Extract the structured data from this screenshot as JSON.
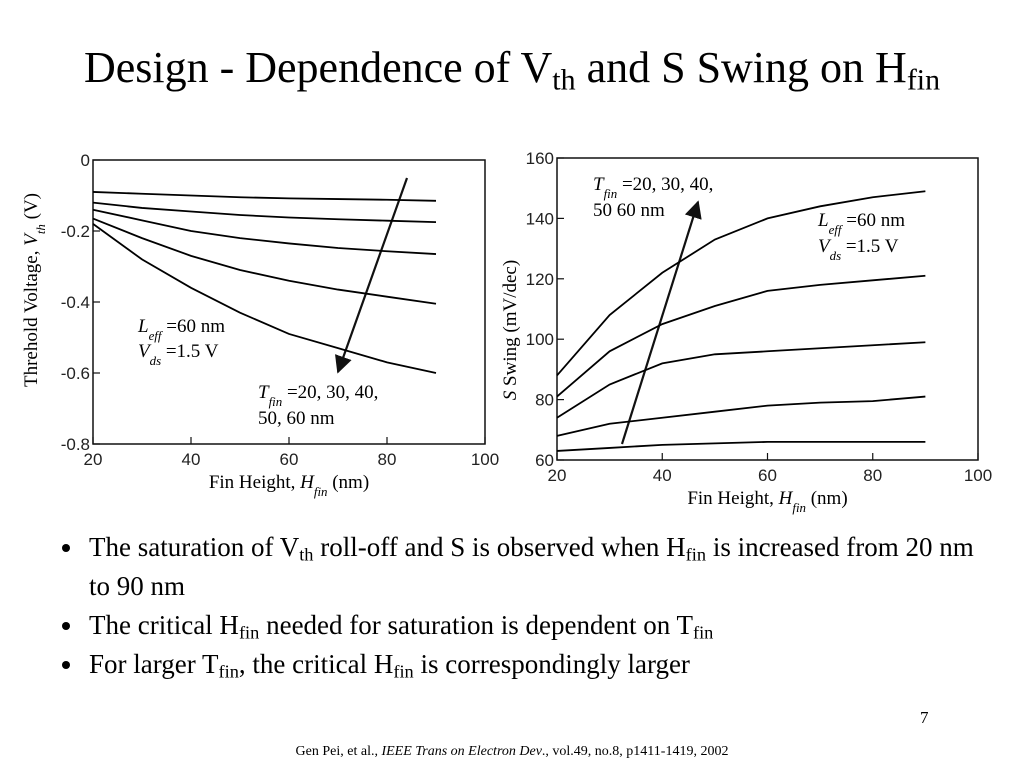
{
  "title": [
    {
      "text": "Design - Dependence of V"
    },
    {
      "text": "th",
      "sub": true
    },
    {
      "text": " and S Swing on H"
    },
    {
      "text": "fin",
      "sub": true
    }
  ],
  "chart_data": [
    {
      "type": "line",
      "x": [
        20,
        30,
        40,
        50,
        60,
        70,
        80,
        90
      ],
      "xlim": [
        20,
        100
      ],
      "xticks": [
        20,
        40,
        60,
        80,
        100
      ],
      "ylim": [
        -0.8,
        0
      ],
      "yticks": [
        0,
        -0.2,
        -0.4,
        -0.6,
        -0.8
      ],
      "color": "#000000",
      "xlabel": [
        {
          "text": "Fin Height, "
        },
        {
          "text": "H",
          "italic": true
        },
        {
          "text": "fin",
          "sub": true,
          "italic": true
        },
        {
          "text": " (nm)"
        }
      ],
      "ylabel": [
        {
          "text": "Threhold Voltage, "
        },
        {
          "text": "V",
          "italic": true
        },
        {
          "text": "th",
          "sub": true,
          "italic": true
        },
        {
          "text": " (V)"
        }
      ],
      "series": [
        {
          "values": [
            -0.09,
            -0.095,
            -0.1,
            -0.105,
            -0.108,
            -0.11,
            -0.112,
            -0.115
          ]
        },
        {
          "values": [
            -0.12,
            -0.135,
            -0.145,
            -0.155,
            -0.162,
            -0.167,
            -0.171,
            -0.175
          ]
        },
        {
          "values": [
            -0.14,
            -0.17,
            -0.2,
            -0.22,
            -0.235,
            -0.248,
            -0.257,
            -0.265
          ]
        },
        {
          "values": [
            -0.165,
            -0.22,
            -0.27,
            -0.31,
            -0.34,
            -0.365,
            -0.385,
            -0.405
          ]
        },
        {
          "values": [
            -0.18,
            -0.28,
            -0.36,
            -0.43,
            -0.49,
            -0.53,
            -0.57,
            -0.6
          ]
        }
      ],
      "annotations": [
        [
          [
            {
              "text": "L",
              "italic": true
            },
            {
              "text": "eff",
              "sub": true,
              "italic": true
            },
            {
              "text": " =60 nm"
            }
          ]
        ],
        [
          [
            {
              "text": "V",
              "italic": true
            },
            {
              "text": "ds",
              "sub": true,
              "italic": true
            },
            {
              "text": " =1.5 V"
            }
          ]
        ],
        [
          [
            {
              "text": "T",
              "italic": true
            },
            {
              "text": "fin",
              "sub": true,
              "italic": true
            },
            {
              "text": " =20, 30, 40,"
            }
          ],
          [
            {
              "text": "50, 60 nm"
            }
          ]
        ]
      ]
    },
    {
      "type": "line",
      "x": [
        20,
        30,
        40,
        50,
        60,
        70,
        80,
        90
      ],
      "xlim": [
        20,
        100
      ],
      "xticks": [
        20,
        40,
        60,
        80,
        100
      ],
      "ylim": [
        60,
        160
      ],
      "yticks": [
        60,
        80,
        100,
        120,
        140,
        160
      ],
      "color": "#000000",
      "xlabel": [
        {
          "text": "Fin Height, "
        },
        {
          "text": "H",
          "italic": true
        },
        {
          "text": "fin",
          "sub": true,
          "italic": true
        },
        {
          "text": " (nm)"
        }
      ],
      "ylabel": [
        {
          "text": "S",
          "italic": true
        },
        {
          "text": " Swing (mV/dec)"
        }
      ],
      "series": [
        {
          "values": [
            63,
            64,
            65,
            65.5,
            66,
            66,
            66,
            66
          ]
        },
        {
          "values": [
            68,
            72,
            74,
            76,
            78,
            79,
            79.5,
            81
          ]
        },
        {
          "values": [
            74,
            85,
            92,
            95,
            96,
            97,
            98,
            99
          ]
        },
        {
          "values": [
            81,
            96,
            105,
            111,
            116,
            118,
            119.5,
            121
          ]
        },
        {
          "values": [
            88,
            108,
            122,
            133,
            140,
            144,
            147,
            149
          ]
        }
      ],
      "annotations": [
        [
          [
            {
              "text": "T",
              "italic": true
            },
            {
              "text": "fin",
              "sub": true,
              "italic": true
            },
            {
              "text": " =20, 30, 40,"
            }
          ],
          [
            {
              "text": "50 60 nm"
            }
          ]
        ],
        [
          [
            {
              "text": "L",
              "italic": true
            },
            {
              "text": "eff",
              "sub": true,
              "italic": true
            },
            {
              "text": " =60 nm"
            }
          ]
        ],
        [
          [
            {
              "text": "V",
              "italic": true
            },
            {
              "text": "ds",
              "sub": true,
              "italic": true
            },
            {
              "text": " =1.5 V"
            }
          ]
        ]
      ]
    }
  ],
  "bullets": [
    [
      {
        "text": "The saturation of V"
      },
      {
        "text": "th",
        "sub": true
      },
      {
        "text": " roll-off and S is observed when H"
      },
      {
        "text": "fin",
        "sub": true
      },
      {
        "text": " is increased from 20 nm to 90 nm"
      }
    ],
    [
      {
        "text": "The critical H"
      },
      {
        "text": "fin",
        "sub": true
      },
      {
        "text": " needed for saturation is dependent on T"
      },
      {
        "text": "fin",
        "sub": true
      }
    ],
    [
      {
        "text": "For larger T"
      },
      {
        "text": "fin",
        "sub": true
      },
      {
        "text": ", the critical H"
      },
      {
        "text": "fin",
        "sub": true
      },
      {
        "text": " is correspondingly larger"
      }
    ]
  ],
  "page_number": "7",
  "citation": [
    {
      "text": "Gen Pei, et al., "
    },
    {
      "text": "IEEE Trans on Electron Dev",
      "italic": true
    },
    {
      "text": "., vol.49, no.8, p1411-1419, 2002"
    }
  ]
}
